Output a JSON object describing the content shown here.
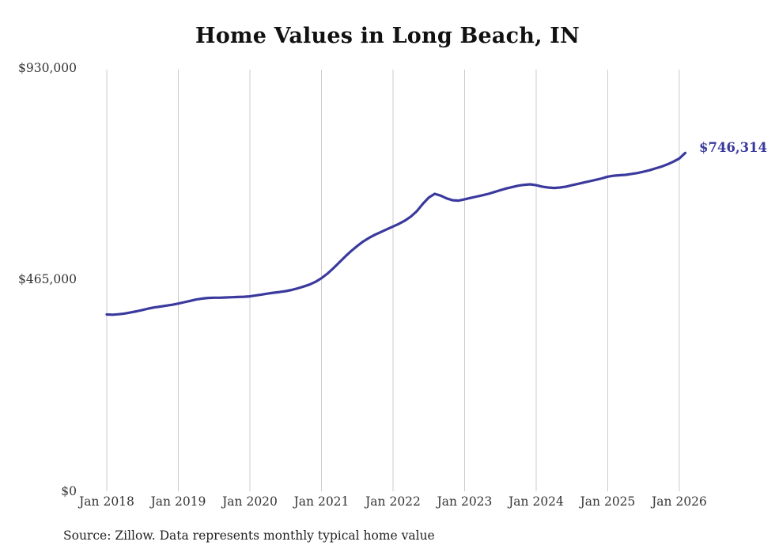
{
  "title": "Home Values in Long Beach, IN",
  "source_note": "Source: Zillow. Data represents monthly typical home value",
  "end_label": "$746,314",
  "colors": {
    "line": "#3a3a9e",
    "grid": "#cccccc",
    "label": "#3a3a9e",
    "text": "#333333"
  },
  "chart_data": {
    "type": "line",
    "title": "Home Values in Long Beach, IN",
    "series_name": "Typical home value",
    "x_start": "2018-01",
    "x_interval": "month",
    "x_tick_labels": [
      "Jan 2018",
      "Jan 2019",
      "Jan 2020",
      "Jan 2021",
      "Jan 2022",
      "Jan 2023",
      "Jan 2024",
      "Jan 2025",
      "Jan 2026"
    ],
    "y_tick_labels": [
      "$0",
      "$465,000",
      "$930,000"
    ],
    "ylim": [
      0,
      930000
    ],
    "grid": "vertical-only",
    "legend": "none",
    "final_value": 746314,
    "final_value_label": "$746,314",
    "values": [
      390000,
      389500,
      390500,
      392000,
      394500,
      397000,
      400000,
      403000,
      405500,
      407500,
      409500,
      411500,
      414000,
      417000,
      420000,
      423000,
      425000,
      426500,
      427000,
      427000,
      427500,
      428000,
      428500,
      429000,
      430000,
      432000,
      434000,
      436000,
      438000,
      439500,
      441500,
      444000,
      447500,
      451500,
      456000,
      462000,
      470000,
      480000,
      492000,
      505000,
      518000,
      530000,
      541000,
      551000,
      559000,
      566000,
      572000,
      578000,
      584000,
      590000,
      597000,
      606000,
      618000,
      634000,
      648000,
      656000,
      652000,
      646000,
      642000,
      641000,
      644000,
      647000,
      650000,
      653000,
      656000,
      660000,
      664000,
      668000,
      671000,
      674000,
      676000,
      677000,
      675000,
      672000,
      670000,
      669000,
      670000,
      672000,
      675000,
      678000,
      681000,
      684000,
      687000,
      690000,
      694000,
      696000,
      697000,
      698000,
      700000,
      702000,
      705000,
      708000,
      712000,
      716000,
      721000,
      727000,
      734000,
      746314
    ]
  }
}
